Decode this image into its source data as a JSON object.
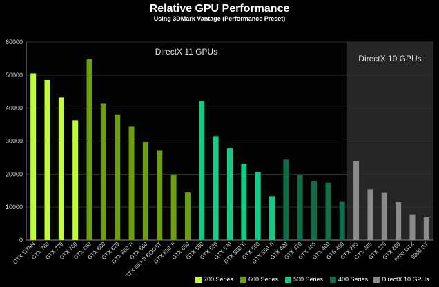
{
  "chart_data": {
    "type": "bar",
    "title": "Relative GPU Performance",
    "subtitle": "Using 3DMark Vantage (Performance Preset)",
    "xlabel": "",
    "ylabel": "",
    "ylim": [
      0,
      60000
    ],
    "yticks": [
      0,
      10000,
      20000,
      30000,
      40000,
      50000,
      60000
    ],
    "grid": true,
    "legend_position": "bottom-right",
    "annotations": [
      "DirectX 11 GPUs",
      "DirectX 10 GPUs"
    ],
    "categories": [
      "GTX TITAN",
      "GTX 780",
      "GTX 770",
      "GTX 760",
      "GTX 690",
      "GTX 680",
      "GTX 670",
      "GTX 660 Ti",
      "GTX 660",
      "GTX 650 Ti BOOST",
      "GTX 650 Ti",
      "GTX 650",
      "GTX 590",
      "GTX 580",
      "GTX 570",
      "GTX 560 Ti",
      "GTX 560",
      "GTX 550 Ti",
      "GTX 480",
      "GTX 470",
      "GTX 465",
      "GTX 460",
      "GTS 450",
      "GTX 295",
      "GTX 285",
      "GTX 275",
      "GTX 260",
      "8800 GTX",
      "9800 GT"
    ],
    "values": [
      50500,
      48500,
      43200,
      36300,
      54800,
      41300,
      38100,
      34400,
      29700,
      27100,
      19900,
      14400,
      42200,
      31500,
      27800,
      23100,
      20600,
      13300,
      24400,
      19700,
      17800,
      17400,
      11600,
      24000,
      15400,
      14300,
      11500,
      7800,
      6900
    ],
    "series_index": [
      0,
      0,
      0,
      0,
      1,
      1,
      1,
      1,
      1,
      1,
      1,
      1,
      2,
      2,
      2,
      2,
      2,
      2,
      3,
      3,
      3,
      3,
      3,
      4,
      4,
      4,
      4,
      4,
      4
    ],
    "series": [
      {
        "name": "700 Series",
        "color": "#c3fc3a"
      },
      {
        "name": "600 Series",
        "color": "#6d9e0f"
      },
      {
        "name": "500 Series",
        "color": "#12cb85"
      },
      {
        "name": "400 Series",
        "color": "#0d6e47"
      },
      {
        "name": "DirectX 10 GPUs",
        "color": "#8b8b8b"
      }
    ]
  }
}
